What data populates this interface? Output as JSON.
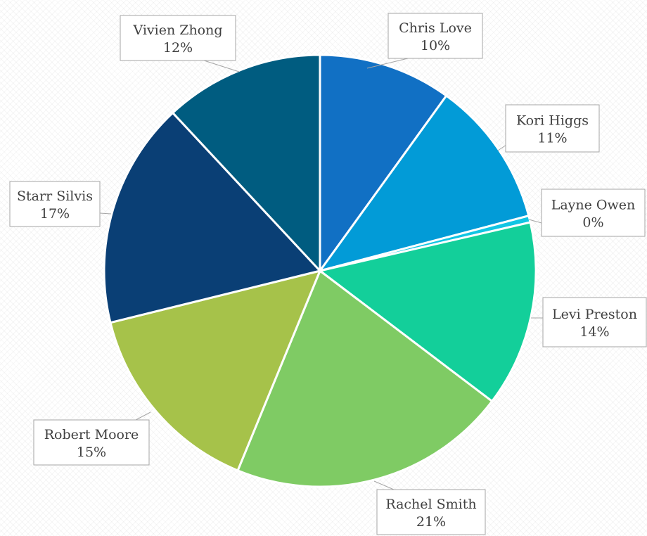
{
  "chart_data": {
    "type": "pie",
    "title": "",
    "start_angle_deg": 0,
    "direction": "clockwise",
    "label_format": "name_and_percent",
    "slices": [
      {
        "name": "Chris Love",
        "value": 10,
        "percent_label": "10%",
        "color": "#1170c4"
      },
      {
        "name": "Kori Higgs",
        "value": 11,
        "percent_label": "11%",
        "color": "#029bd7"
      },
      {
        "name": "Layne Owen",
        "value": 0.5,
        "percent_label": "0%",
        "color": "#11c5e3"
      },
      {
        "name": "Levi Preston",
        "value": 14,
        "percent_label": "14%",
        "color": "#13cf9a"
      },
      {
        "name": "Rachel Smith",
        "value": 21,
        "percent_label": "21%",
        "color": "#7fcb64"
      },
      {
        "name": "Robert Moore",
        "value": 15,
        "percent_label": "15%",
        "color": "#a6c24a"
      },
      {
        "name": "Starr Silvis",
        "value": 17,
        "percent_label": "17%",
        "color": "#0a3f75"
      },
      {
        "name": "Vivien Zhong",
        "value": 12,
        "percent_label": "12%",
        "color": "#005c80"
      }
    ]
  }
}
